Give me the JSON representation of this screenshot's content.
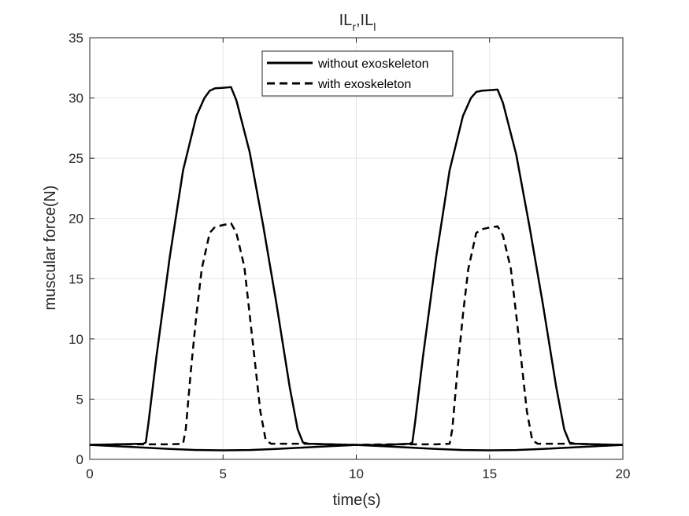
{
  "chart_data": {
    "type": "line",
    "title": "IL",
    "title_sub_1": "r",
    "title_sep": ",IL",
    "title_sub_2": "l",
    "xlabel": "time(s)",
    "ylabel": "muscular force(N)",
    "xlim": [
      0,
      20
    ],
    "ylim": [
      0,
      35
    ],
    "x_ticks": [
      0,
      5,
      10,
      15,
      20
    ],
    "y_ticks": [
      0,
      5,
      10,
      15,
      20,
      25,
      30,
      35
    ],
    "grid": true,
    "legend_position": "top-center",
    "colors": {
      "line": "#000000",
      "axis": "#262626",
      "grid": "#e6e6e6"
    },
    "series": [
      {
        "name": "without exoskeleton",
        "style": "solid",
        "x": [
          0,
          1,
          2,
          2.1,
          2.2,
          2.5,
          3,
          3.5,
          4,
          4.3,
          4.5,
          4.7,
          5,
          5.3,
          5.5,
          6,
          6.5,
          7,
          7.5,
          7.8,
          8,
          8.2,
          9,
          10,
          11,
          12,
          12.1,
          12.2,
          12.5,
          13,
          13.5,
          14,
          14.3,
          14.5,
          14.7,
          15,
          15.3,
          15.5,
          16,
          16.5,
          17,
          17.5,
          17.8,
          18,
          18.2,
          19,
          20
        ],
        "y": [
          1.2,
          1.25,
          1.3,
          1.4,
          3.0,
          8.5,
          16.8,
          24.0,
          28.5,
          30.0,
          30.6,
          30.8,
          30.85,
          30.9,
          29.8,
          25.5,
          19.5,
          13.0,
          6.0,
          2.5,
          1.4,
          1.3,
          1.25,
          1.2,
          1.2,
          1.3,
          1.4,
          3.0,
          8.5,
          16.8,
          24.0,
          28.5,
          30.0,
          30.5,
          30.6,
          30.65,
          30.7,
          29.6,
          25.3,
          19.3,
          12.9,
          6.0,
          2.5,
          1.4,
          1.3,
          1.25,
          1.2
        ]
      },
      {
        "name": "with exoskeleton",
        "style": "dashed",
        "x": [
          0,
          1,
          2,
          3,
          3.5,
          3.6,
          3.8,
          4.0,
          4.2,
          4.5,
          4.7,
          5,
          5.3,
          5.5,
          5.8,
          6.0,
          6.2,
          6.4,
          6.6,
          6.8,
          7,
          8,
          9,
          10,
          11,
          12,
          13,
          13.5,
          13.6,
          13.8,
          14.0,
          14.2,
          14.5,
          14.7,
          15,
          15.3,
          15.5,
          15.8,
          16.0,
          16.2,
          16.4,
          16.6,
          16.8,
          17,
          18,
          19,
          20
        ],
        "y": [
          1.2,
          1.25,
          1.25,
          1.25,
          1.3,
          2.5,
          7.5,
          12.0,
          15.8,
          18.8,
          19.3,
          19.45,
          19.6,
          18.8,
          16.0,
          12.0,
          8.0,
          4.0,
          1.6,
          1.3,
          1.3,
          1.3,
          1.25,
          1.2,
          1.25,
          1.25,
          1.25,
          1.3,
          2.5,
          7.5,
          12.0,
          15.8,
          18.8,
          19.1,
          19.25,
          19.35,
          18.6,
          15.8,
          12.0,
          8.0,
          4.0,
          1.6,
          1.3,
          1.3,
          1.3,
          1.25,
          1.2
        ]
      },
      {
        "name": "",
        "style": "solid",
        "x": [
          0,
          1,
          2,
          3,
          4,
          5,
          6,
          7,
          8,
          9,
          10,
          11,
          12,
          13,
          14,
          15,
          16,
          17,
          18,
          19,
          20
        ],
        "y": [
          1.2,
          1.1,
          0.98,
          0.87,
          0.78,
          0.75,
          0.78,
          0.87,
          0.98,
          1.1,
          1.2,
          1.1,
          0.98,
          0.87,
          0.78,
          0.75,
          0.78,
          0.87,
          0.98,
          1.1,
          1.2
        ]
      }
    ]
  }
}
